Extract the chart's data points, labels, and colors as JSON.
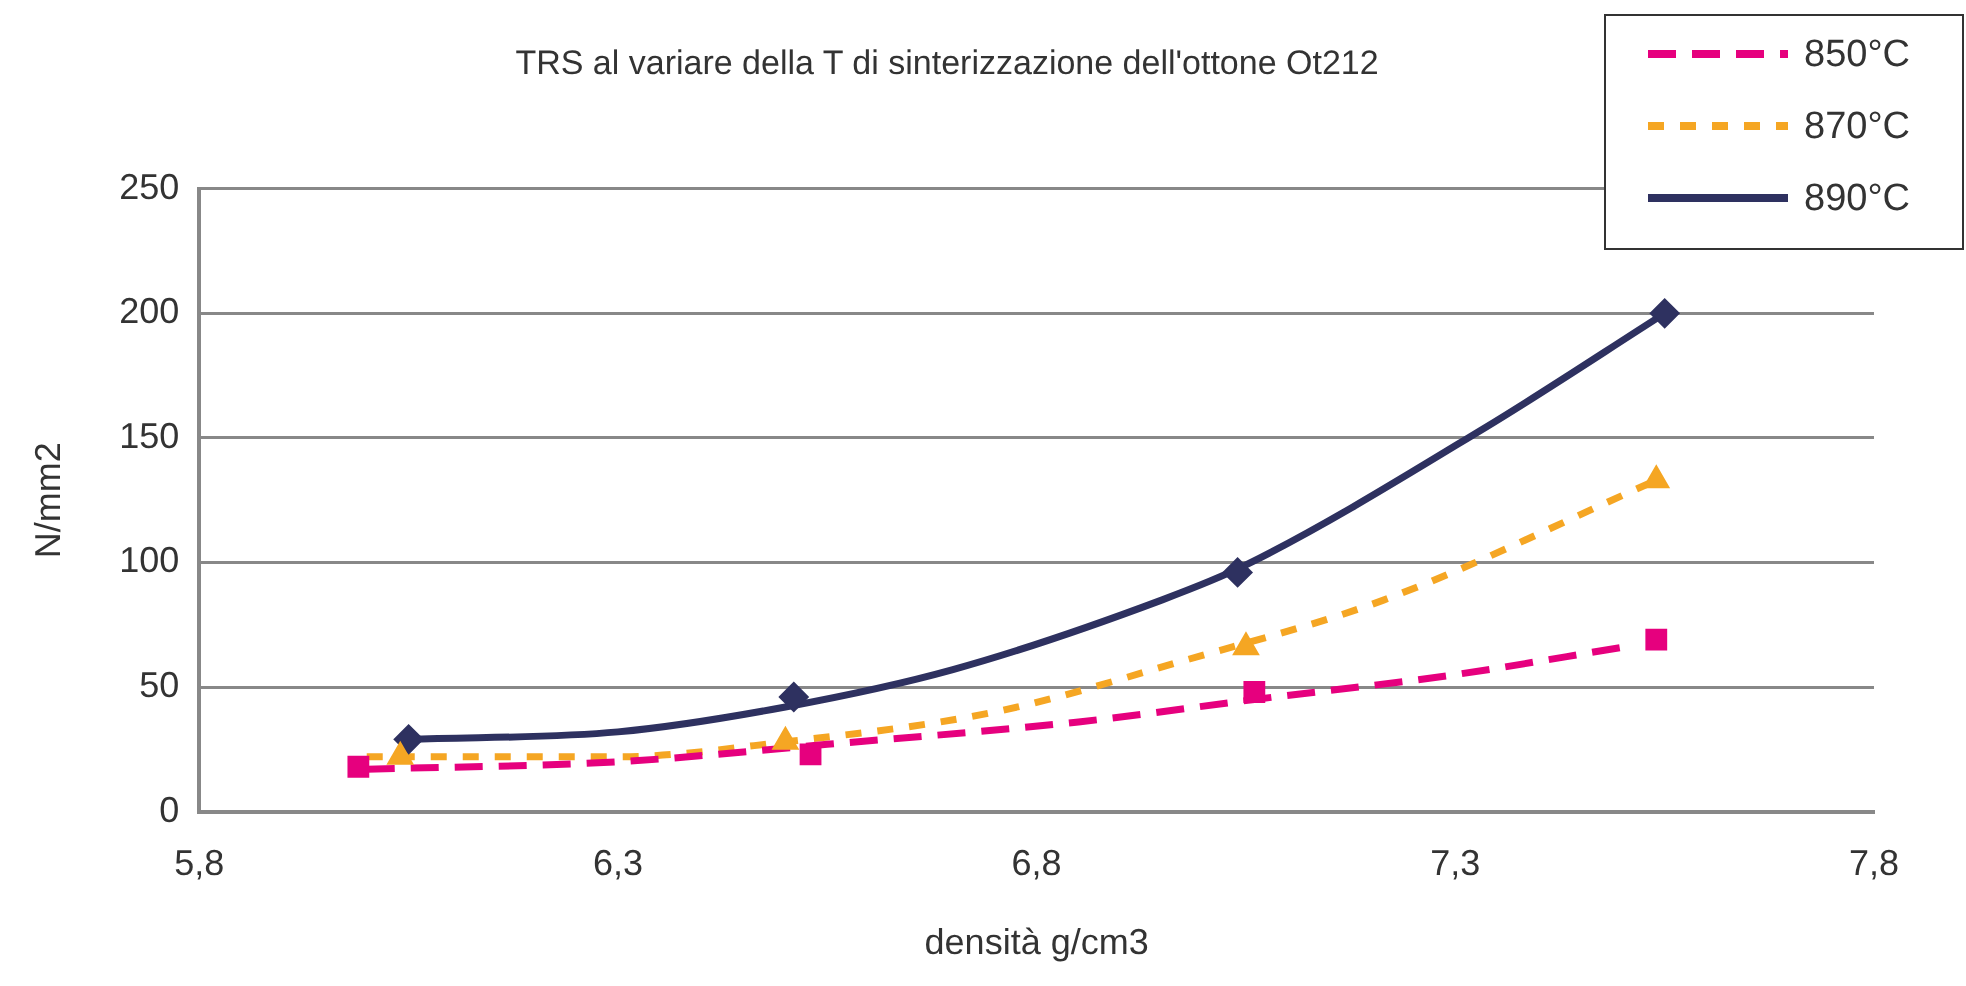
{
  "chart_data": {
    "type": "scatter",
    "title": "TRS al variare della T di sinterizzazione dell'ottone Ot212",
    "xlabel": "densità g/cm3",
    "ylabel": "N/mm2",
    "xlim": [
      5.8,
      7.8
    ],
    "xticks": [
      {
        "value": 5.8,
        "label": "5,8"
      },
      {
        "value": 6.3,
        "label": "6,3"
      },
      {
        "value": 6.8,
        "label": "6,8"
      },
      {
        "value": 7.3,
        "label": "7,3"
      },
      {
        "value": 7.8,
        "label": "7,8"
      }
    ],
    "ylim": [
      0,
      250
    ],
    "yticks": [
      0,
      50,
      100,
      150,
      200,
      250
    ],
    "grid": "y",
    "legend": "top right",
    "series": [
      {
        "type": "scatter",
        "color": "#e6007e",
        "marker": "square",
        "x": [
          5.99,
          6.53,
          7.06,
          7.54
        ],
        "values": [
          18,
          23,
          48,
          69
        ]
      },
      {
        "type": "scatter",
        "color": "#f5a623",
        "marker": "triangle",
        "x": [
          6.04,
          6.5,
          7.05,
          7.54
        ],
        "values": [
          22,
          28,
          66,
          133
        ]
      },
      {
        "type": "scatter",
        "color": "#2e3160",
        "marker": "diamond",
        "x": [
          6.05,
          6.51,
          7.04,
          7.55
        ],
        "values": [
          29,
          46,
          96,
          200
        ]
      },
      {
        "type": "line",
        "name": "850°C",
        "color": "#e6007e",
        "line_style": "dashed",
        "marker": "none",
        "x": [
          6.0,
          6.3,
          6.55,
          6.85,
          7.06,
          7.3,
          7.5
        ],
        "values": [
          17,
          20,
          27,
          36,
          45,
          55,
          66
        ]
      },
      {
        "type": "line",
        "name": "870°C",
        "color": "#f5a623",
        "line_style": "dotted",
        "marker": "none",
        "x": [
          6.0,
          6.3,
          6.5,
          6.75,
          6.98,
          7.215,
          7.54
        ],
        "values": [
          22,
          22,
          28,
          40,
          61,
          85,
          133
        ]
      },
      {
        "type": "line",
        "name": "890°C",
        "color": "#2e3160",
        "line_style": "solid",
        "marker": "none",
        "x": [
          6.05,
          6.3,
          6.5,
          6.7,
          6.95,
          7.05,
          7.335,
          7.55
        ],
        "values": [
          29,
          32,
          42,
          57,
          85,
          99,
          154,
          200
        ]
      }
    ]
  }
}
